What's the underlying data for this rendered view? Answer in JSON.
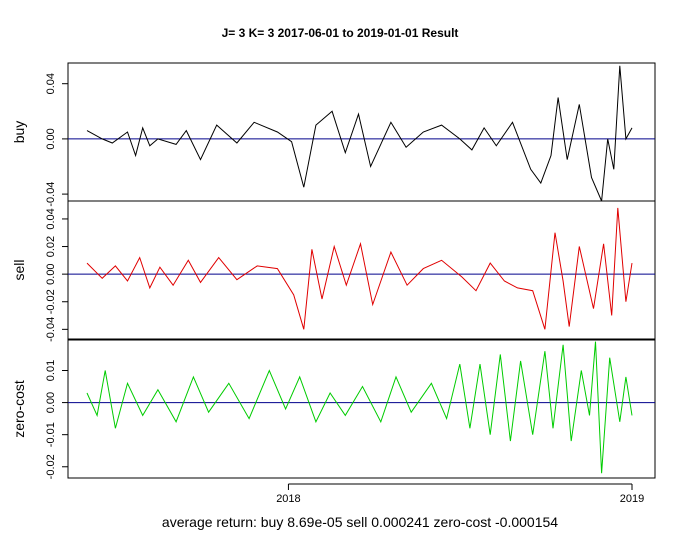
{
  "chart_data": {
    "type": "line",
    "title": "J= 3 K= 3 2017-06-01 to 2019-01-01 Result",
    "xlabel": "average return: buy 8.69e-05 sell 0.000241 zero-cost -0.000154",
    "x_range": [
      "2017-06-01",
      "2019-01-01"
    ],
    "x_ticks": [
      {
        "label": "2018",
        "date": "2018-01-01"
      },
      {
        "label": "2019",
        "date": "2019-01-01"
      }
    ],
    "panels": [
      {
        "name": "buy",
        "ylabel": "buy",
        "color": "#000000",
        "ylim": [
          -0.045,
          0.055
        ],
        "yticks": [
          -0.04,
          0.0,
          0.04
        ],
        "ytick_labels": [
          "-0.04",
          "0.00",
          "0.04"
        ],
        "hline": 0,
        "points": [
          [
            0,
            0.006
          ],
          [
            15,
            0.0
          ],
          [
            25,
            -0.003
          ],
          [
            40,
            0.005
          ],
          [
            48,
            -0.012
          ],
          [
            55,
            0.008
          ],
          [
            62,
            -0.005
          ],
          [
            70,
            0.0
          ],
          [
            88,
            -0.004
          ],
          [
            98,
            0.006
          ],
          [
            112,
            -0.015
          ],
          [
            128,
            0.01
          ],
          [
            148,
            -0.003
          ],
          [
            165,
            0.012
          ],
          [
            188,
            0.005
          ],
          [
            202,
            -0.002
          ],
          [
            214,
            -0.035
          ],
          [
            226,
            0.01
          ],
          [
            242,
            0.02
          ],
          [
            255,
            -0.01
          ],
          [
            268,
            0.018
          ],
          [
            280,
            -0.02
          ],
          [
            300,
            0.012
          ],
          [
            315,
            -0.006
          ],
          [
            332,
            0.005
          ],
          [
            350,
            0.01
          ],
          [
            368,
            0.0
          ],
          [
            380,
            -0.008
          ],
          [
            392,
            0.008
          ],
          [
            404,
            -0.005
          ],
          [
            420,
            0.012
          ],
          [
            438,
            -0.022
          ],
          [
            448,
            -0.032
          ],
          [
            458,
            -0.012
          ],
          [
            465,
            0.03
          ],
          [
            474,
            -0.015
          ],
          [
            486,
            0.025
          ],
          [
            498,
            -0.028
          ],
          [
            508,
            -0.045
          ],
          [
            514,
            0.0
          ],
          [
            520,
            -0.022
          ],
          [
            526,
            0.053
          ],
          [
            532,
            0.0
          ],
          [
            538,
            0.008
          ]
        ]
      },
      {
        "name": "sell",
        "ylabel": "sell",
        "color": "#e00000",
        "ylim": [
          -0.047,
          0.053
        ],
        "yticks": [
          -0.04,
          -0.02,
          0.0,
          0.02,
          0.04
        ],
        "ytick_labels": [
          "-0.04",
          "-0.02",
          "0.00",
          "0.02",
          "0.04"
        ],
        "hline": 0,
        "points": [
          [
            0,
            0.008
          ],
          [
            15,
            -0.003
          ],
          [
            28,
            0.006
          ],
          [
            40,
            -0.005
          ],
          [
            52,
            0.012
          ],
          [
            62,
            -0.01
          ],
          [
            72,
            0.005
          ],
          [
            85,
            -0.008
          ],
          [
            100,
            0.01
          ],
          [
            112,
            -0.006
          ],
          [
            130,
            0.012
          ],
          [
            148,
            -0.004
          ],
          [
            168,
            0.006
          ],
          [
            188,
            0.004
          ],
          [
            204,
            -0.015
          ],
          [
            214,
            -0.04
          ],
          [
            222,
            0.018
          ],
          [
            232,
            -0.018
          ],
          [
            244,
            0.02
          ],
          [
            256,
            -0.008
          ],
          [
            270,
            0.022
          ],
          [
            282,
            -0.022
          ],
          [
            300,
            0.016
          ],
          [
            316,
            -0.008
          ],
          [
            332,
            0.004
          ],
          [
            350,
            0.01
          ],
          [
            370,
            -0.002
          ],
          [
            384,
            -0.012
          ],
          [
            398,
            0.008
          ],
          [
            412,
            -0.005
          ],
          [
            425,
            -0.01
          ],
          [
            440,
            -0.012
          ],
          [
            452,
            -0.04
          ],
          [
            462,
            0.03
          ],
          [
            470,
            -0.005
          ],
          [
            476,
            -0.038
          ],
          [
            486,
            0.02
          ],
          [
            500,
            -0.025
          ],
          [
            510,
            0.022
          ],
          [
            518,
            -0.03
          ],
          [
            524,
            0.048
          ],
          [
            532,
            -0.02
          ],
          [
            538,
            0.008
          ]
        ]
      },
      {
        "name": "zero-cost",
        "ylabel": "zero-cost",
        "color": "#00cc00",
        "ylim": [
          -0.0235,
          0.0195
        ],
        "yticks": [
          -0.02,
          -0.01,
          0.0,
          0.01
        ],
        "ytick_labels": [
          "-0.02",
          "-0.01",
          "0.00",
          "0.01"
        ],
        "hline": 0,
        "points": [
          [
            0,
            0.003
          ],
          [
            10,
            -0.004
          ],
          [
            18,
            0.01
          ],
          [
            28,
            -0.008
          ],
          [
            40,
            0.006
          ],
          [
            55,
            -0.004
          ],
          [
            70,
            0.004
          ],
          [
            88,
            -0.006
          ],
          [
            105,
            0.008
          ],
          [
            120,
            -0.003
          ],
          [
            140,
            0.006
          ],
          [
            160,
            -0.005
          ],
          [
            180,
            0.01
          ],
          [
            196,
            -0.002
          ],
          [
            210,
            0.008
          ],
          [
            226,
            -0.006
          ],
          [
            240,
            0.003
          ],
          [
            255,
            -0.004
          ],
          [
            272,
            0.005
          ],
          [
            290,
            -0.006
          ],
          [
            305,
            0.008
          ],
          [
            320,
            -0.003
          ],
          [
            340,
            0.006
          ],
          [
            355,
            -0.005
          ],
          [
            368,
            0.012
          ],
          [
            378,
            -0.008
          ],
          [
            388,
            0.012
          ],
          [
            398,
            -0.01
          ],
          [
            408,
            0.015
          ],
          [
            418,
            -0.012
          ],
          [
            428,
            0.013
          ],
          [
            440,
            -0.01
          ],
          [
            452,
            0.016
          ],
          [
            460,
            -0.008
          ],
          [
            470,
            0.018
          ],
          [
            478,
            -0.012
          ],
          [
            488,
            0.01
          ],
          [
            496,
            -0.004
          ],
          [
            502,
            0.019
          ],
          [
            508,
            -0.022
          ],
          [
            516,
            0.014
          ],
          [
            526,
            -0.006
          ],
          [
            532,
            0.008
          ],
          [
            538,
            -0.004
          ]
        ]
      }
    ]
  }
}
